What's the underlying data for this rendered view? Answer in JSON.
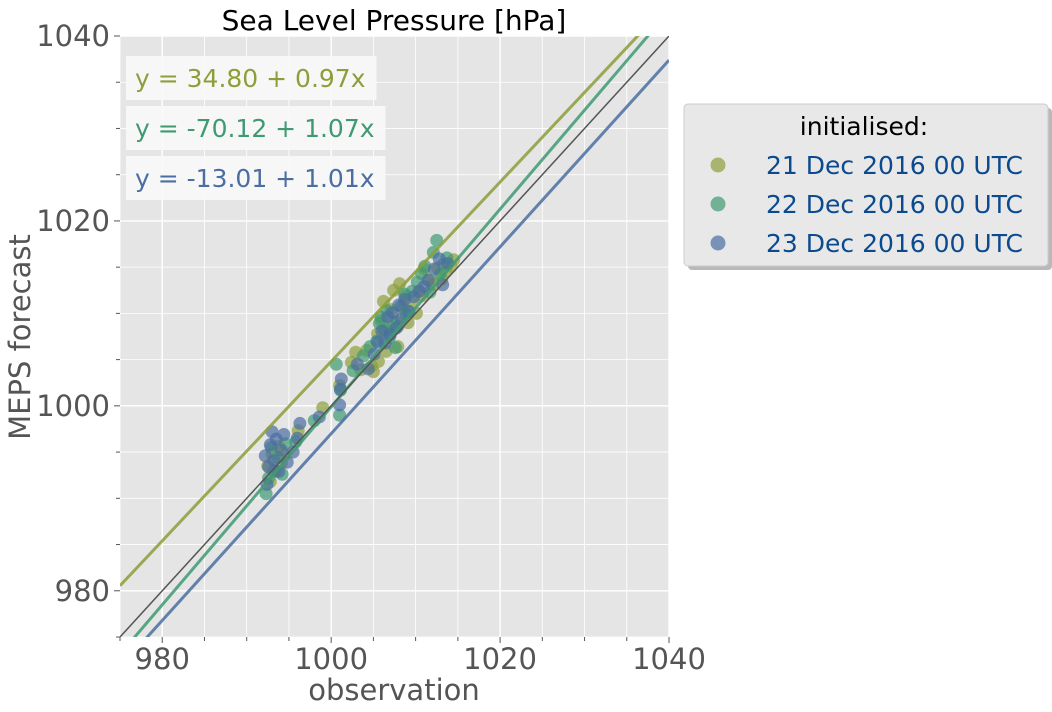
{
  "chart_data": {
    "type": "scatter",
    "title": "Sea Level Pressure [hPa]",
    "xlabel": "observation",
    "ylabel": "MEPS forecast",
    "xlim": [
      975,
      1040
    ],
    "ylim": [
      975,
      1040
    ],
    "x_ticks": [
      "980",
      "1000",
      "1020",
      "1040"
    ],
    "y_ticks": [
      "980",
      "1000",
      "1020",
      "1040"
    ],
    "grid": true,
    "identity_line_color": "#555555",
    "colors": {
      "plot_background": "#e5e5e5",
      "grid": "#ffffff",
      "legend_text": "#0b4a8f"
    },
    "legend": {
      "title": "initialised:",
      "placement": "outside-right"
    },
    "series": [
      {
        "name": "21 Dec 2016 00 UTC",
        "color": "#8c9f3a",
        "equation": "y = 34.80 + 0.97x",
        "intercept": 34.8,
        "slope": 0.97,
        "points": [
          [
            992.5,
            993.5
          ],
          [
            992.8,
            991.8
          ],
          [
            993.0,
            994.8
          ],
          [
            993.4,
            992.9
          ],
          [
            993.8,
            995.6
          ],
          [
            994.1,
            993.8
          ],
          [
            994.5,
            994.7
          ],
          [
            996.1,
            997.3
          ],
          [
            999.0,
            999.8
          ],
          [
            1001.0,
            1002.2
          ],
          [
            1002.4,
            1004.7
          ],
          [
            1002.9,
            1005.8
          ],
          [
            1003.5,
            1003.9
          ],
          [
            1004.2,
            1006.0
          ],
          [
            1004.8,
            1004.3
          ],
          [
            1005.0,
            1003.7
          ],
          [
            1005.5,
            1007.8
          ],
          [
            1005.9,
            1009.2
          ],
          [
            1006.2,
            1011.3
          ],
          [
            1006.5,
            1005.9
          ],
          [
            1006.8,
            1008.2
          ],
          [
            1007.1,
            1010.4
          ],
          [
            1007.4,
            1012.5
          ],
          [
            1007.8,
            1009.1
          ],
          [
            1008.1,
            1013.2
          ],
          [
            1008.5,
            1010.6
          ],
          [
            1008.8,
            1011.9
          ],
          [
            1009.1,
            1009.0
          ],
          [
            1009.6,
            1011.3
          ],
          [
            1010.1,
            1010.0
          ],
          [
            1010.5,
            1012.4
          ],
          [
            1011.0,
            1014.8
          ],
          [
            1011.6,
            1013.6
          ],
          [
            1012.0,
            1013.1
          ],
          [
            1012.6,
            1014.9
          ],
          [
            1013.1,
            1013.7
          ],
          [
            1013.6,
            1014.6
          ],
          [
            1014.2,
            1015.1
          ],
          [
            1014.5,
            1015.8
          ],
          [
            1007.9,
            1006.4
          ],
          [
            1005.6,
            1004.8
          ],
          [
            1010.8,
            1011.9
          ]
        ]
      },
      {
        "name": "22 Dec 2016 00 UTC",
        "color": "#3f9a72",
        "equation": "y = -70.12 + 1.07x",
        "intercept": -70.12,
        "slope": 1.07,
        "points": [
          [
            992.3,
            990.5
          ],
          [
            992.6,
            992.2
          ],
          [
            992.9,
            995.5
          ],
          [
            993.2,
            993.0
          ],
          [
            993.7,
            994.4
          ],
          [
            994.2,
            992.6
          ],
          [
            994.6,
            995.9
          ],
          [
            995.8,
            996.1
          ],
          [
            998.0,
            998.4
          ],
          [
            1000.6,
            1004.5
          ],
          [
            1001.0,
            999.0
          ],
          [
            1001.1,
            1001.7
          ],
          [
            1002.6,
            1003.8
          ],
          [
            1003.8,
            1005.4
          ],
          [
            1004.6,
            1006.4
          ],
          [
            1005.4,
            1007.0
          ],
          [
            1005.9,
            1009.6
          ],
          [
            1006.3,
            1008.2
          ],
          [
            1006.6,
            1010.3
          ],
          [
            1006.9,
            1007.4
          ],
          [
            1007.3,
            1009.1
          ],
          [
            1007.6,
            1006.3
          ],
          [
            1007.9,
            1008.6
          ],
          [
            1008.3,
            1010.8
          ],
          [
            1008.7,
            1012.1
          ],
          [
            1009.2,
            1010.2
          ],
          [
            1009.6,
            1012.4
          ],
          [
            1010.2,
            1013.4
          ],
          [
            1010.7,
            1014.3
          ],
          [
            1011.1,
            1015.1
          ],
          [
            1011.7,
            1012.3
          ],
          [
            1012.1,
            1016.6
          ],
          [
            1012.5,
            1017.9
          ],
          [
            1012.9,
            1014.2
          ],
          [
            1013.3,
            1015.3
          ],
          [
            1013.7,
            1016.0
          ],
          [
            1005.7,
            1008.9
          ],
          [
            1007.0,
            1008.0
          ],
          [
            1008.9,
            1009.9
          ]
        ]
      },
      {
        "name": "23 Dec 2016 00 UTC",
        "color": "#4b6ea2",
        "equation": "y = -13.01 + 1.01x",
        "intercept": -13.01,
        "slope": 1.01,
        "points": [
          [
            992.2,
            994.6
          ],
          [
            992.4,
            991.5
          ],
          [
            992.6,
            993.4
          ],
          [
            992.8,
            995.8
          ],
          [
            993.0,
            997.2
          ],
          [
            993.2,
            994.1
          ],
          [
            993.5,
            996.4
          ],
          [
            993.8,
            992.9
          ],
          [
            994.1,
            995.2
          ],
          [
            994.4,
            996.9
          ],
          [
            994.8,
            993.9
          ],
          [
            995.5,
            995.0
          ],
          [
            996.0,
            996.5
          ],
          [
            996.3,
            998.1
          ],
          [
            998.6,
            998.8
          ],
          [
            1001.0,
            1000.1
          ],
          [
            1001.1,
            1001.8
          ],
          [
            1001.2,
            1002.9
          ],
          [
            1003.1,
            1004.5
          ],
          [
            1004.4,
            1004.0
          ],
          [
            1005.1,
            1005.6
          ],
          [
            1005.5,
            1006.9
          ],
          [
            1006.0,
            1008.1
          ],
          [
            1006.4,
            1006.8
          ],
          [
            1006.7,
            1009.6
          ],
          [
            1007.0,
            1007.7
          ],
          [
            1007.3,
            1010.1
          ],
          [
            1007.7,
            1008.4
          ],
          [
            1008.0,
            1010.9
          ],
          [
            1008.3,
            1009.4
          ],
          [
            1008.7,
            1011.5
          ],
          [
            1009.2,
            1010.2
          ],
          [
            1009.8,
            1011.8
          ],
          [
            1010.4,
            1012.4
          ],
          [
            1011.0,
            1012.9
          ],
          [
            1011.5,
            1013.6
          ],
          [
            1012.2,
            1014.8
          ],
          [
            1012.8,
            1015.9
          ],
          [
            1013.2,
            1013.1
          ],
          [
            1013.8,
            1015.4
          ]
        ]
      }
    ]
  }
}
